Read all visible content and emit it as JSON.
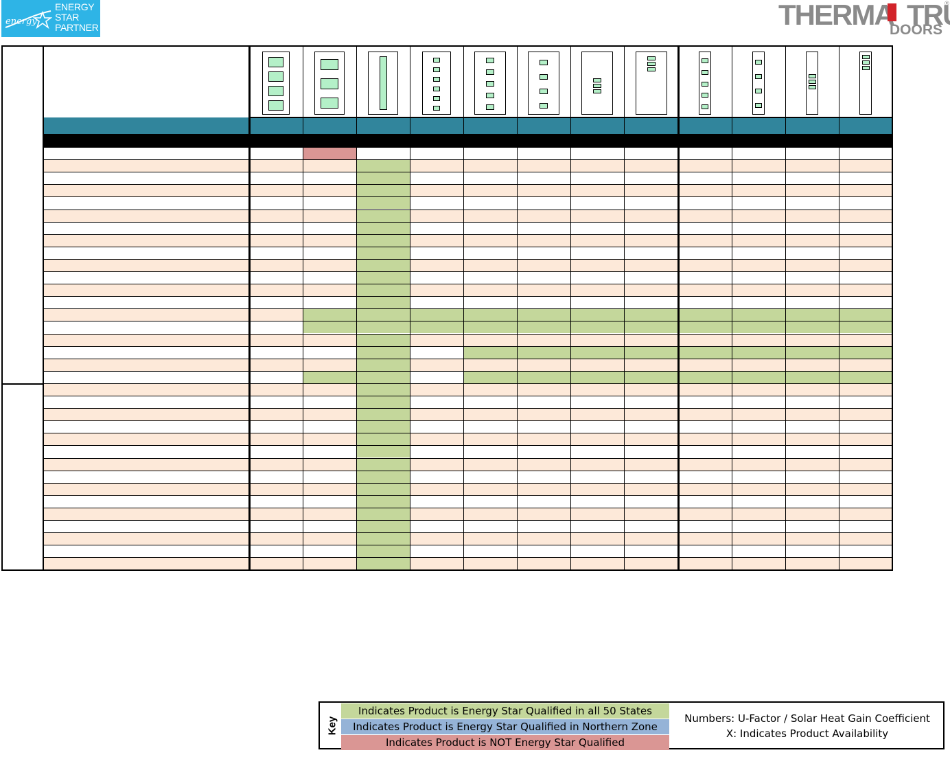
{
  "logos": {
    "energy_star": {
      "line1": "ENERGY",
      "line2": "STAR",
      "line3": "PARTNER",
      "script": "energy",
      "color": "#2eb4e6"
    },
    "therma_tru": {
      "name": "THERMA TRU",
      "sub": "DOORS",
      "reg": "®",
      "accent": "#d2232a"
    }
  },
  "colors": {
    "qualified_all": "#c4d79b",
    "qualified_north": "#95b3d7",
    "not_qualified": "#da9694",
    "band": "#31859c",
    "alt_row": "#fde9d9"
  },
  "table": {
    "door_columns": 12,
    "body_rows": 34,
    "section_breaks": [
      19
    ],
    "not_qualified_cells": [
      [
        0,
        1
      ]
    ],
    "qualified_cells": {
      "col2_rows": [
        1,
        33
      ],
      "extra": [
        {
          "row": 13,
          "cols": [
            1,
            3,
            4,
            5,
            6,
            7,
            8,
            9,
            10,
            11
          ]
        },
        {
          "row": 14,
          "cols": [
            1,
            3,
            4,
            5,
            6,
            7,
            8,
            9,
            10,
            11
          ]
        },
        {
          "row": 16,
          "cols": [
            4,
            5,
            6,
            7,
            8,
            9,
            10,
            11
          ]
        },
        {
          "row": 18,
          "cols": [
            1,
            4,
            5,
            6,
            7,
            8,
            9,
            10,
            11
          ]
        }
      ]
    }
  },
  "key": {
    "title": "Key",
    "items": [
      "Indicates Product is Energy Star Qualified in all 50 States",
      "Indicates Product is Energy Star Qualified in Northern Zone",
      "Indicates Product is NOT Energy Star Qualified"
    ],
    "note1": "Numbers: U-Factor / Solar Heat Gain Coefficient",
    "note2": "X: Indicates Product Availability"
  }
}
